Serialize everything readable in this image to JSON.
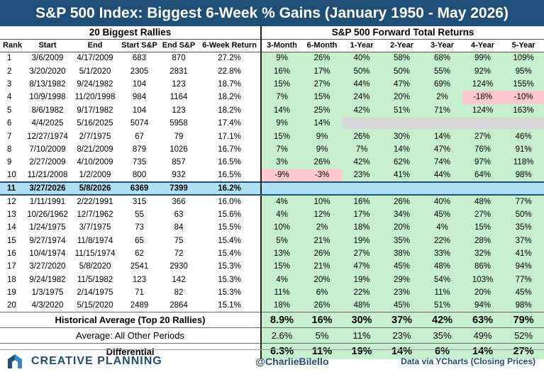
{
  "title": "S&P 500 Index: Biggest 6-Week % Gains (January 1950 - May 2026)",
  "left_group": "20 Biggest Rallies",
  "right_group": "S&P 500 Forward Total Returns",
  "headers": [
    "Rank",
    "Start",
    "End",
    "Start S&P",
    "End S&P",
    "6-Week Return",
    "3-Month",
    "6-Month",
    "1-Year",
    "2-Year",
    "3-Year",
    "4-Year",
    "5-Year"
  ],
  "rows": [
    [
      "1",
      "3/6/2009",
      "4/17/2009",
      "683",
      "870",
      "27.2%",
      "9%",
      "26%",
      "40%",
      "58%",
      "68%",
      "99%",
      "109%"
    ],
    [
      "2",
      "3/20/2020",
      "5/1/2020",
      "2305",
      "2831",
      "22.8%",
      "16%",
      "17%",
      "50%",
      "50%",
      "55%",
      "92%",
      "95%"
    ],
    [
      "3",
      "8/13/1982",
      "9/24/1982",
      "104",
      "123",
      "18.7%",
      "15%",
      "27%",
      "44%",
      "47%",
      "69%",
      "124%",
      "155%"
    ],
    [
      "4",
      "10/9/1998",
      "11/20/1998",
      "984",
      "1164",
      "18.2%",
      "7%",
      "15%",
      "24%",
      "20%",
      "2%",
      "-18%",
      "-10%"
    ],
    [
      "5",
      "8/6/1982",
      "9/17/1982",
      "104",
      "123",
      "18.2%",
      "14%",
      "25%",
      "42%",
      "51%",
      "71%",
      "124%",
      "163%"
    ],
    [
      "6",
      "4/4/2025",
      "5/16/2025",
      "5074",
      "5958",
      "17.4%",
      "9%",
      "14%",
      "",
      "",
      "",
      "",
      ""
    ],
    [
      "7",
      "12/27/1974",
      "2/7/1975",
      "67",
      "79",
      "17.1%",
      "15%",
      "9%",
      "26%",
      "30%",
      "14%",
      "27%",
      "46%"
    ],
    [
      "8",
      "7/10/2009",
      "8/21/2009",
      "879",
      "1026",
      "16.7%",
      "7%",
      "9%",
      "7%",
      "14%",
      "47%",
      "76%",
      "91%"
    ],
    [
      "9",
      "2/27/2009",
      "4/10/2009",
      "735",
      "857",
      "16.5%",
      "3%",
      "26%",
      "42%",
      "62%",
      "74%",
      "97%",
      "118%"
    ],
    [
      "10",
      "11/21/2008",
      "1/2/2009",
      "800",
      "932",
      "16.5%",
      "-9%",
      "-3%",
      "23%",
      "41%",
      "44%",
      "64%",
      "98%"
    ],
    [
      "11",
      "3/27/2026",
      "5/8/2026",
      "6369",
      "7399",
      "16.2%",
      "",
      "",
      "",
      "",
      "",
      "",
      ""
    ],
    [
      "12",
      "1/11/1991",
      "2/22/1991",
      "315",
      "366",
      "16.0%",
      "4%",
      "10%",
      "16%",
      "26%",
      "40%",
      "48%",
      "77%"
    ],
    [
      "13",
      "10/26/1962",
      "12/7/1962",
      "55",
      "63",
      "15.6%",
      "4%",
      "12%",
      "17%",
      "34%",
      "45%",
      "27%",
      "50%"
    ],
    [
      "14",
      "1/24/1975",
      "3/7/1975",
      "73",
      "84",
      "15.5%",
      "10%",
      "2%",
      "18%",
      "20%",
      "4%",
      "15%",
      "35%"
    ],
    [
      "15",
      "9/27/1974",
      "11/8/1974",
      "65",
      "75",
      "15.4%",
      "5%",
      "21%",
      "19%",
      "35%",
      "22%",
      "28%",
      "37%"
    ],
    [
      "16",
      "10/4/1974",
      "11/15/1974",
      "62",
      "72",
      "15.4%",
      "13%",
      "26%",
      "27%",
      "38%",
      "33%",
      "32%",
      "41%"
    ],
    [
      "17",
      "3/27/2020",
      "5/8/2020",
      "2541",
      "2930",
      "15.3%",
      "15%",
      "21%",
      "47%",
      "45%",
      "48%",
      "86%",
      "94%"
    ],
    [
      "18",
      "9/24/1982",
      "11/5/1982",
      "123",
      "142",
      "15.3%",
      "4%",
      "20%",
      "19%",
      "29%",
      "54%",
      "103%",
      "77%"
    ],
    [
      "19",
      "1/3/1975",
      "2/14/1975",
      "71",
      "82",
      "15.3%",
      "11%",
      "6%",
      "22%",
      "23%",
      "11%",
      "20%",
      "45%"
    ],
    [
      "20",
      "4/3/2020",
      "5/15/2020",
      "2489",
      "2864",
      "15.1%",
      "18%",
      "26%",
      "48%",
      "45%",
      "51%",
      "94%",
      "98%"
    ]
  ],
  "summary": {
    "avg_label": "Historical Average (Top 20 Rallies)",
    "avg": [
      "8.9%",
      "16%",
      "30%",
      "37%",
      "42%",
      "63%",
      "79%"
    ],
    "other_label": "Average: All Other Periods",
    "other": [
      "2.6%",
      "5%",
      "11%",
      "23%",
      "35%",
      "49%",
      "52%"
    ],
    "diff_label": "Differential",
    "diff": [
      "6.3%",
      "11%",
      "19%",
      "14%",
      "6%",
      "14%",
      "27%"
    ]
  },
  "footer": {
    "brand": "CREATIVE PLANNING",
    "handle": "@CharlieBilello",
    "source": "Data via YCharts (Closing Prices)"
  },
  "colors": {
    "title_bg": "#1f4e79",
    "positive": "#c6efce",
    "negative": "#ffc7ce",
    "missing": "#d9d9d9",
    "highlight": "#aee0f4"
  },
  "logo_icon": "creative-planning-logo-icon"
}
